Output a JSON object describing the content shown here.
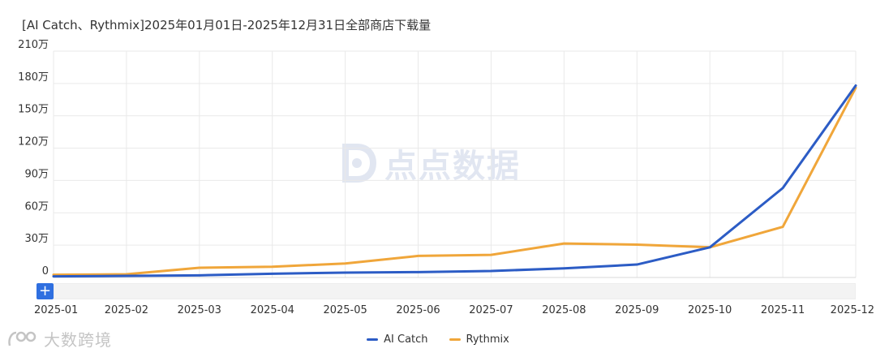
{
  "header": {
    "title": "[AI Catch、Rythmix]2025年01月01日-2025年12月31日全部商店下载量"
  },
  "controls": {
    "zoom_plus": "+"
  },
  "watermarks": {
    "center": "点点数据",
    "bottom_left": "大数跨境"
  },
  "colors": {
    "ai_catch": "#2c5cc5",
    "rythmix": "#f0a63a",
    "grid": "#e9e9e9"
  },
  "chart_data": {
    "type": "line",
    "categories": [
      "2025-01",
      "2025-02",
      "2025-03",
      "2025-04",
      "2025-05",
      "2025-06",
      "2025-07",
      "2025-08",
      "2025-09",
      "2025-10",
      "2025-11",
      "2025-12"
    ],
    "y_ticks": [
      "0",
      "30万",
      "60万",
      "90万",
      "120万",
      "150万",
      "180万",
      "210万"
    ],
    "ylim": [
      0,
      210
    ],
    "y_unit": "万",
    "grid": true,
    "legend_position": "bottom-center",
    "series": [
      {
        "name": "AI Catch",
        "color": "#2c5cc5",
        "values": [
          1,
          1.5,
          2,
          3.5,
          4.5,
          5,
          6,
          8.5,
          12,
          28,
          83,
          178
        ]
      },
      {
        "name": "Rythmix",
        "color": "#f0a63a",
        "values": [
          2.5,
          3,
          9,
          10,
          13,
          20,
          21,
          31.5,
          30.5,
          28,
          47,
          176
        ]
      }
    ]
  }
}
